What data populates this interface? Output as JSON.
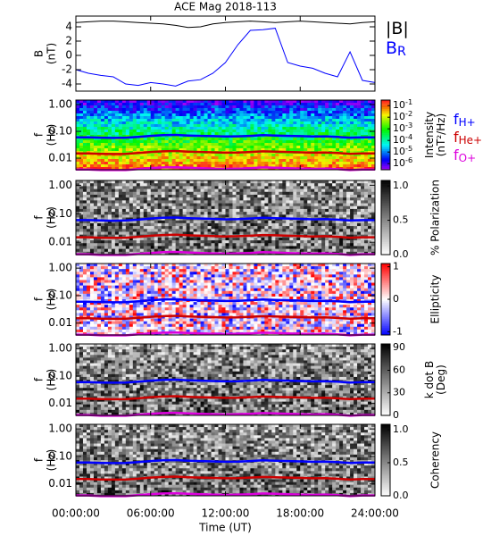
{
  "chart_data": [
    {
      "type": "line",
      "title": "ACE Mag 2018-113",
      "ylabel": [
        "B",
        "(nT)"
      ],
      "xlim": [
        0,
        24
      ],
      "x": [
        0,
        1,
        2,
        3,
        4,
        5,
        6,
        7,
        8,
        9,
        10,
        11,
        12,
        13,
        14,
        15,
        16,
        17,
        18,
        19,
        20,
        21,
        22,
        23,
        24
      ],
      "ylim": [
        -5,
        5.5
      ],
      "yticks": [
        -4,
        -2,
        0,
        2,
        4
      ],
      "series": [
        {
          "name": "|B|",
          "color": "#000000",
          "values": [
            4.6,
            4.7,
            4.8,
            4.8,
            4.7,
            4.6,
            4.5,
            4.4,
            4.2,
            3.9,
            4.0,
            4.4,
            4.6,
            4.7,
            4.8,
            4.7,
            4.6,
            4.7,
            4.8,
            4.7,
            4.6,
            4.5,
            4.4,
            4.6,
            4.7
          ]
        },
        {
          "name": "B",
          "subscript": "R",
          "color": "#0000ff",
          "values": [
            -2.0,
            -2.5,
            -2.8,
            -3.0,
            -4.0,
            -4.2,
            -3.8,
            -4.0,
            -4.3,
            -3.6,
            -3.4,
            -2.5,
            -1.0,
            1.5,
            3.5,
            3.6,
            3.8,
            -1.0,
            -1.5,
            -1.8,
            -2.5,
            -3.0,
            0.5,
            -3.5,
            -3.8
          ]
        }
      ]
    },
    {
      "type": "spectrogram",
      "ylabel": [
        "f",
        "(Hz)"
      ],
      "log": true,
      "xlim": [
        0,
        24
      ],
      "ylim": [
        0.0037,
        1.47
      ],
      "yticks": [
        {
          "value": 1,
          "label": "1.00"
        },
        {
          "value": 0.1,
          "label": "0.10"
        },
        {
          "value": 0.01,
          "label": "0.01"
        }
      ],
      "colormap": "rainbow",
      "clog": true,
      "clim": [
        3e-07,
        0.3
      ],
      "colorbar_label": [
        "Intensity",
        "(nT²/Hz)"
      ],
      "cticks": [
        {
          "value": 0.1,
          "label": "10",
          "sup": "-1"
        },
        {
          "value": 0.01,
          "label": "10",
          "sup": "-2"
        },
        {
          "value": 0.001,
          "label": "10",
          "sup": "-3"
        },
        {
          "value": 0.0001,
          "label": "10",
          "sup": "-4"
        },
        {
          "value": 1e-05,
          "label": "10",
          "sup": "-5"
        },
        {
          "value": 1e-06,
          "label": "10",
          "sup": "-6"
        }
      ],
      "x": [
        0,
        1,
        2,
        3,
        4,
        5,
        6,
        7,
        8,
        9,
        10,
        11,
        12,
        13,
        14,
        15,
        16,
        17,
        18,
        19,
        20,
        21,
        22,
        23,
        24
      ],
      "series": [
        {
          "name": "f",
          "subscript": "H+",
          "color": "#0000ff",
          "values": [
            0.06,
            0.06,
            0.058,
            0.057,
            0.058,
            0.062,
            0.068,
            0.072,
            0.074,
            0.07,
            0.068,
            0.066,
            0.064,
            0.065,
            0.068,
            0.072,
            0.07,
            0.068,
            0.066,
            0.064,
            0.065,
            0.062,
            0.058,
            0.06,
            0.06
          ]
        },
        {
          "name": "f",
          "subscript": "He+",
          "color": "#cc0000",
          "values": [
            0.015,
            0.015,
            0.0145,
            0.0143,
            0.0145,
            0.0155,
            0.017,
            0.018,
            0.0185,
            0.0175,
            0.017,
            0.0165,
            0.016,
            0.0163,
            0.017,
            0.018,
            0.0175,
            0.017,
            0.0165,
            0.016,
            0.0163,
            0.0155,
            0.0145,
            0.015,
            0.015
          ]
        },
        {
          "name": "f",
          "subscript": "O+",
          "color": "#dd00dd",
          "values": [
            0.0038,
            0.0038,
            0.0036,
            0.0036,
            0.0036,
            0.0039,
            0.0042,
            0.0045,
            0.0046,
            0.0044,
            0.0042,
            0.0041,
            0.004,
            0.0041,
            0.0042,
            0.0045,
            0.0044,
            0.0042,
            0.0041,
            0.004,
            0.0041,
            0.0039,
            0.0036,
            0.0038,
            0.0038
          ]
        }
      ]
    },
    {
      "type": "spectrogram",
      "ylabel": [
        "f",
        "(Hz)"
      ],
      "log": true,
      "xlim": [
        0,
        24
      ],
      "ylim": [
        0.0037,
        1.47
      ],
      "yticks": [
        {
          "value": 1,
          "label": "1.00"
        },
        {
          "value": 0.1,
          "label": "0.10"
        },
        {
          "value": 0.01,
          "label": "0.01"
        }
      ],
      "colormap": "gray",
      "clim": [
        0,
        1.08
      ],
      "colorbar_label": [
        "% Polarization"
      ],
      "cticks": [
        {
          "value": 0,
          "label": "0.0"
        },
        {
          "value": 0.5,
          "label": "0.5"
        },
        {
          "value": 1,
          "label": "1.0"
        }
      ]
    },
    {
      "type": "spectrogram",
      "ylabel": [
        "f",
        "(Hz)"
      ],
      "log": true,
      "xlim": [
        0,
        24
      ],
      "ylim": [
        0.0037,
        1.47
      ],
      "yticks": [
        {
          "value": 1,
          "label": "1.00"
        },
        {
          "value": 0.1,
          "label": "0.10"
        },
        {
          "value": 0.01,
          "label": "0.01"
        }
      ],
      "colormap": "bwr",
      "clim": [
        -1.1,
        1.1
      ],
      "colorbar_label": [
        "Ellipticity"
      ],
      "cticks": [
        -1,
        0,
        1
      ]
    },
    {
      "type": "spectrogram",
      "ylabel": [
        "f",
        "(Hz)"
      ],
      "log": true,
      "xlim": [
        0,
        24
      ],
      "ylim": [
        0.0037,
        1.47
      ],
      "yticks": [
        {
          "value": 1,
          "label": "1.00"
        },
        {
          "value": 0.1,
          "label": "0.10"
        },
        {
          "value": 0.01,
          "label": "0.01"
        }
      ],
      "colormap": "gray",
      "clim": [
        0,
        95
      ],
      "colorbar_label": [
        "k dot B",
        "(Deg)"
      ],
      "cticks": [
        0,
        30,
        60,
        90
      ]
    },
    {
      "type": "spectrogram",
      "ylabel": [
        "f",
        "(Hz)"
      ],
      "log": true,
      "xlim": [
        0,
        24
      ],
      "ylim": [
        0.0037,
        1.47
      ],
      "yticks": [
        {
          "value": 1,
          "label": "1.00"
        },
        {
          "value": 0.1,
          "label": "0.10"
        },
        {
          "value": 0.01,
          "label": "0.01"
        }
      ],
      "colormap": "gray",
      "clim": [
        0,
        1.08
      ],
      "colorbar_label": [
        "Coherency"
      ],
      "cticks": [
        {
          "value": 0,
          "label": "0.0"
        },
        {
          "value": 0.5,
          "label": "0.5"
        },
        {
          "value": 1,
          "label": "1.0"
        }
      ],
      "xlabel": "Time (UT)",
      "xticks": [
        {
          "value": 0,
          "label": "00:00:00"
        },
        {
          "value": 6,
          "label": "06:00:00"
        },
        {
          "value": 12,
          "label": "12:00:00"
        },
        {
          "value": 18,
          "label": "18:00:00"
        },
        {
          "value": 24,
          "label": "24:00:00"
        }
      ]
    }
  ]
}
